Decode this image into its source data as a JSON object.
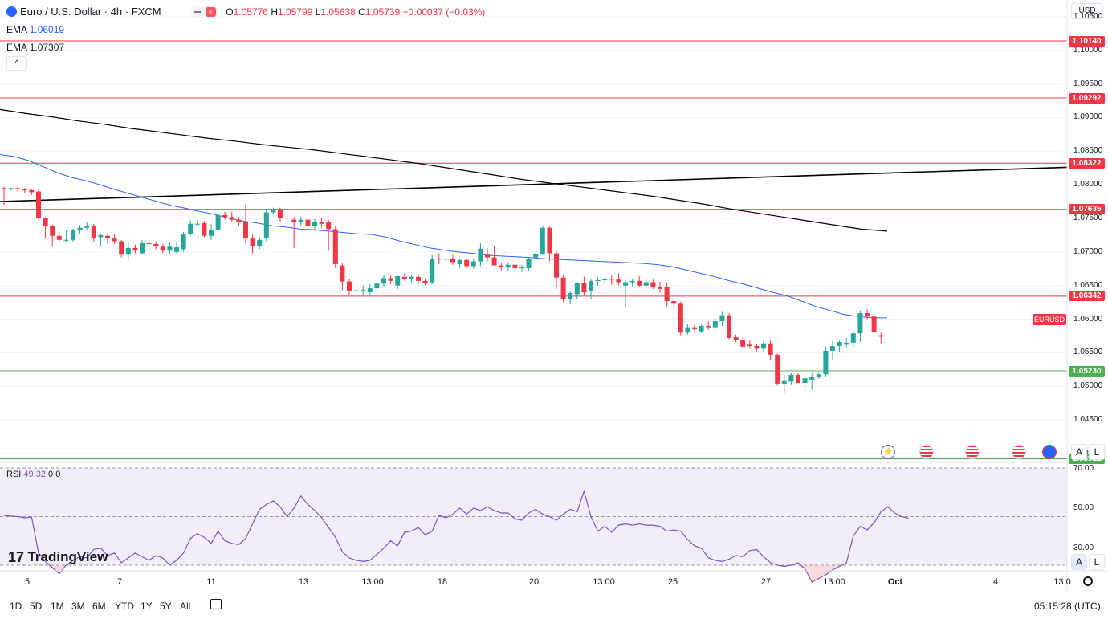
{
  "header": {
    "symbol_title": "Euro / U.S. Dollar · 4h · FXCM",
    "ohlc": {
      "open_label": "O",
      "open": "1.05776",
      "high_label": "H",
      "high": "1.05799",
      "low_label": "L",
      "low": "1.05638",
      "close_label": "C",
      "close": "1.05739",
      "change": "−0.00037 (−0.03%)"
    },
    "ema_fast_label": "EMA",
    "ema_fast_value": "1.06019",
    "ema_slow_label": "EMA",
    "ema_slow_value": "1.07307",
    "collapse_glyph": "^"
  },
  "currency_button": "USD",
  "symbol_tag": "EURUSD",
  "rsi": {
    "label": "RSI",
    "value": "49.32",
    "extra1": "0",
    "extra2": "0",
    "ticks": [
      "70.00",
      "50.00",
      "30.00"
    ]
  },
  "logo_text": "TradingView",
  "x_ticks": [
    "5",
    "7",
    "11",
    "13",
    "13:00",
    "18",
    "20",
    "13:00",
    "25",
    "27",
    "13:00",
    "Oct",
    "4",
    "13:0"
  ],
  "range_buttons": [
    "1D",
    "5D",
    "1M",
    "3M",
    "6M",
    "YTD",
    "1Y",
    "5Y",
    "All"
  ],
  "clock": "05:15:28 (UTC)",
  "scale_buttons": {
    "auto": "A",
    "log": "L"
  },
  "colors": {
    "up": "#26a69a",
    "down": "#f23645",
    "ema_fast": "#2962ff",
    "ema_slow": "#000000",
    "resistance": "#f23645",
    "support": "#4caf50",
    "rsi_line": "#7e57c2"
  },
  "chart_data": [
    {
      "type": "candlestick",
      "title": "Euro / U.S. Dollar · 4h · FXCM",
      "y_ticks": [
        1.105,
        1.1,
        1.095,
        1.09,
        1.085,
        1.08,
        1.075,
        1.07,
        1.065,
        1.06,
        1.055,
        1.05,
        1.045,
        1.04
      ],
      "y_tick_labels": [
        "1.10500",
        "1.10000",
        "1.09500",
        "1.09000",
        "1.08500",
        "1.08000",
        "1.07500",
        "1.07000",
        "1.06500",
        "1.06000",
        "1.05500",
        "1.05000",
        "1.04500",
        "1.04000"
      ],
      "ylim": [
        1.0388,
        1.1075
      ],
      "x_tick_labels": [
        "5",
        "7",
        "11",
        "13",
        "13:00",
        "18",
        "20",
        "13:00",
        "25",
        "27",
        "13:00",
        "Oct",
        "4",
        "13:0"
      ],
      "horizontal_levels": [
        {
          "value": 1.1014,
          "label": "1.10140",
          "kind": "resistance"
        },
        {
          "value": 1.09292,
          "label": "1.09292",
          "kind": "resistance"
        },
        {
          "value": 1.08322,
          "label": "1.08322",
          "kind": "resistance"
        },
        {
          "value": 1.07635,
          "label": "1.07635",
          "kind": "resistance"
        },
        {
          "value": 1.06342,
          "label": "1.06342",
          "kind": "resistance"
        },
        {
          "value": 1.0523,
          "label": "1.05230",
          "kind": "support"
        },
        {
          "value": 1.03922,
          "label": "1.03922",
          "kind": "support"
        }
      ],
      "trendline": {
        "start": 1.0775,
        "end": 1.0826
      },
      "ema_fast": [
        1.0845,
        1.0842,
        1.0836,
        1.0827,
        1.0818,
        1.0811,
        1.0806,
        1.08,
        1.0793,
        1.0787,
        1.0781,
        1.0775,
        1.0769,
        1.0765,
        1.076,
        1.0756,
        1.075,
        1.0746,
        1.0743,
        1.0739,
        1.0737,
        1.0734,
        1.0733,
        1.0731,
        1.0729,
        1.0727,
        1.0726,
        1.0722,
        1.0716,
        1.0711,
        1.0706,
        1.0703,
        1.07,
        1.0698,
        1.0695,
        1.0694,
        1.0693,
        1.0692,
        1.069,
        1.0689,
        1.0688,
        1.0687,
        1.0686,
        1.0685,
        1.0684,
        1.0683,
        1.0681,
        1.0678,
        1.0673,
        1.0668,
        1.0663,
        1.0657,
        1.0652,
        1.0646,
        1.064,
        1.0635,
        1.0627,
        1.0619,
        1.0613,
        1.0607,
        1.0604,
        1.0602,
        1.0602
      ],
      "ema_slow": [
        1.0912,
        1.0906,
        1.0901,
        1.0895,
        1.089,
        1.0884,
        1.0879,
        1.0874,
        1.0869,
        1.0865,
        1.086,
        1.0856,
        1.0852,
        1.0847,
        1.0842,
        1.0837,
        1.0832,
        1.0826,
        1.082,
        1.0814,
        1.0808,
        1.0803,
        1.0798,
        1.0793,
        1.0788,
        1.0783,
        1.0777,
        1.0771,
        1.0764,
        1.0758,
        1.0752,
        1.0746,
        1.074,
        1.0734,
        1.0731
      ],
      "candles": [
        [
          1.0795,
          1.0797,
          1.077,
          1.0793
        ],
        [
          1.0793,
          1.0796,
          1.0792,
          1.0795
        ],
        [
          1.0795,
          1.0796,
          1.0789,
          1.0793
        ],
        [
          1.0793,
          1.0795,
          1.0788,
          1.0792
        ],
        [
          1.0792,
          1.0794,
          1.0785,
          1.0789
        ],
        [
          1.079,
          1.0794,
          1.0748,
          1.075
        ],
        [
          1.075,
          1.0752,
          1.072,
          1.0738
        ],
        [
          1.0738,
          1.0741,
          1.0708,
          1.0724
        ],
        [
          1.0724,
          1.073,
          1.0715,
          1.0718
        ],
        [
          1.0718,
          1.0733,
          1.0714,
          1.0718
        ],
        [
          1.0718,
          1.0735,
          1.0715,
          1.0733
        ],
        [
          1.0732,
          1.074,
          1.0726,
          1.0736
        ],
        [
          1.0736,
          1.0744,
          1.0732,
          1.0738
        ],
        [
          1.0738,
          1.0742,
          1.0715,
          1.072
        ],
        [
          1.0722,
          1.0728,
          1.0708,
          1.0725
        ],
        [
          1.0724,
          1.0728,
          1.0712,
          1.072
        ],
        [
          1.072,
          1.0726,
          1.0712,
          1.0716
        ],
        [
          1.0716,
          1.0718,
          1.0692,
          1.0696
        ],
        [
          1.0696,
          1.0714,
          1.0688,
          1.0706
        ],
        [
          1.0706,
          1.0711,
          1.0698,
          1.0702
        ],
        [
          1.0698,
          1.0718,
          1.0696,
          1.0713
        ],
        [
          1.0713,
          1.0722,
          1.0704,
          1.0712
        ],
        [
          1.0712,
          1.0716,
          1.0704,
          1.0708
        ],
        [
          1.0708,
          1.0712,
          1.0698,
          1.0702
        ],
        [
          1.0702,
          1.0715,
          1.0697,
          1.0708
        ],
        [
          1.07,
          1.0715,
          1.0697,
          1.0707
        ],
        [
          1.0704,
          1.073,
          1.07,
          1.0727
        ],
        [
          1.0727,
          1.0747,
          1.0724,
          1.0742
        ],
        [
          1.0742,
          1.0748,
          1.0738,
          1.0742
        ],
        [
          1.0743,
          1.0746,
          1.0722,
          1.0724
        ],
        [
          1.0724,
          1.0742,
          1.0718,
          1.0733
        ],
        [
          1.0733,
          1.076,
          1.073,
          1.0755
        ],
        [
          1.0755,
          1.076,
          1.0748,
          1.0752
        ],
        [
          1.0752,
          1.076,
          1.0745,
          1.0748
        ],
        [
          1.0748,
          1.0752,
          1.0738,
          1.0745
        ],
        [
          1.0745,
          1.0772,
          1.0712,
          1.072
        ],
        [
          1.072,
          1.0726,
          1.0698,
          1.0708
        ],
        [
          1.0708,
          1.0722,
          1.0704,
          1.0718
        ],
        [
          1.072,
          1.0763,
          1.0716,
          1.0759
        ],
        [
          1.0759,
          1.0766,
          1.0756,
          1.0762
        ],
        [
          1.0762,
          1.0766,
          1.0745,
          1.0751
        ],
        [
          1.0751,
          1.0758,
          1.0738,
          1.075
        ],
        [
          1.0748,
          1.0752,
          1.0706,
          1.0745
        ],
        [
          1.0745,
          1.0753,
          1.0738,
          1.0748
        ],
        [
          1.0748,
          1.0752,
          1.0734,
          1.0739
        ],
        [
          1.0739,
          1.0749,
          1.0731,
          1.0745
        ],
        [
          1.0745,
          1.075,
          1.0736,
          1.0742
        ],
        [
          1.0745,
          1.0748,
          1.0702,
          1.0734
        ],
        [
          1.0734,
          1.0738,
          1.0676,
          1.0682
        ],
        [
          1.068,
          1.0684,
          1.0643,
          1.0656
        ],
        [
          1.0656,
          1.066,
          1.0636,
          1.0642
        ],
        [
          1.0642,
          1.0649,
          1.0636,
          1.0643
        ],
        [
          1.0643,
          1.065,
          1.0635,
          1.0644
        ],
        [
          1.064,
          1.0652,
          1.0634,
          1.0646
        ],
        [
          1.0646,
          1.0657,
          1.0643,
          1.0653
        ],
        [
          1.0653,
          1.0666,
          1.0648,
          1.0661
        ],
        [
          1.0661,
          1.0666,
          1.0652,
          1.0657
        ],
        [
          1.065,
          1.0665,
          1.0645,
          1.0664
        ],
        [
          1.0663,
          1.0668,
          1.0657,
          1.066
        ],
        [
          1.066,
          1.0666,
          1.0654,
          1.0663
        ],
        [
          1.0663,
          1.0667,
          1.0652,
          1.0657
        ],
        [
          1.0657,
          1.0661,
          1.065,
          1.0653
        ],
        [
          1.0655,
          1.0695,
          1.0652,
          1.069
        ],
        [
          1.069,
          1.0697,
          1.0682,
          1.0689
        ],
        [
          1.0689,
          1.0692,
          1.0685,
          1.069
        ],
        [
          1.069,
          1.0696,
          1.0681,
          1.0685
        ],
        [
          1.0682,
          1.069,
          1.0676,
          1.0688
        ],
        [
          1.0688,
          1.069,
          1.0676,
          1.0679
        ],
        [
          1.0679,
          1.0689,
          1.0675,
          1.0686
        ],
        [
          1.0686,
          1.0713,
          1.0679,
          1.0705
        ],
        [
          1.0696,
          1.0706,
          1.0686,
          1.0692
        ],
        [
          1.0692,
          1.071,
          1.0682,
          1.068
        ],
        [
          1.068,
          1.0685,
          1.0672,
          1.0677
        ],
        [
          1.0677,
          1.0685,
          1.0672,
          1.0681
        ],
        [
          1.0681,
          1.0684,
          1.067,
          1.0676
        ],
        [
          1.0676,
          1.0681,
          1.067,
          1.0678
        ],
        [
          1.0676,
          1.0692,
          1.0672,
          1.069
        ],
        [
          1.0692,
          1.0699,
          1.0694,
          1.0697
        ],
        [
          1.0697,
          1.0739,
          1.0695,
          1.0736
        ],
        [
          1.0736,
          1.0739,
          1.0686,
          1.0698
        ],
        [
          1.0698,
          1.0702,
          1.0645,
          1.0662
        ],
        [
          1.0662,
          1.0666,
          1.0625,
          1.063
        ],
        [
          1.063,
          1.0642,
          1.0622,
          1.0639
        ],
        [
          1.0637,
          1.0655,
          1.063,
          1.0654
        ],
        [
          1.0654,
          1.0663,
          1.0636,
          1.064
        ],
        [
          1.0642,
          1.0659,
          1.063,
          1.0657
        ],
        [
          1.0657,
          1.0663,
          1.065,
          1.0658
        ],
        [
          1.0658,
          1.0662,
          1.0652,
          1.066
        ],
        [
          1.066,
          1.0665,
          1.0651,
          1.0659
        ],
        [
          1.0659,
          1.0668,
          1.065,
          1.0655
        ],
        [
          1.065,
          1.0658,
          1.0618,
          1.0655
        ],
        [
          1.0655,
          1.066,
          1.0649,
          1.0657
        ],
        [
          1.0657,
          1.0664,
          1.0647,
          1.065
        ],
        [
          1.065,
          1.066,
          1.0646,
          1.0655
        ],
        [
          1.0655,
          1.0659,
          1.0645,
          1.0648
        ],
        [
          1.0648,
          1.0656,
          1.064,
          1.0645
        ],
        [
          1.0648,
          1.0653,
          1.0618,
          1.0627
        ],
        [
          1.0627,
          1.0628,
          1.0617,
          1.0623
        ],
        [
          1.0623,
          1.0626,
          1.0576,
          1.058
        ],
        [
          1.058,
          1.0593,
          1.0577,
          1.0588
        ],
        [
          1.0588,
          1.0592,
          1.058,
          1.0585
        ],
        [
          1.0582,
          1.0592,
          1.0579,
          1.059
        ],
        [
          1.059,
          1.0597,
          1.0584,
          1.0588
        ],
        [
          1.0588,
          1.0601,
          1.0584,
          1.0597
        ],
        [
          1.0597,
          1.0611,
          1.059,
          1.0606
        ],
        [
          1.0606,
          1.0609,
          1.057,
          1.0572
        ],
        [
          1.0573,
          1.0577,
          1.0566,
          1.0569
        ],
        [
          1.0569,
          1.0573,
          1.0556,
          1.0559
        ],
        [
          1.0562,
          1.0568,
          1.0556,
          1.056
        ],
        [
          1.056,
          1.0564,
          1.0551,
          1.0556
        ],
        [
          1.0556,
          1.057,
          1.0552,
          1.0564
        ],
        [
          1.0564,
          1.0568,
          1.054,
          1.0547
        ],
        [
          1.0547,
          1.0549,
          1.0501,
          1.0504
        ],
        [
          1.0504,
          1.0517,
          1.049,
          1.0509
        ],
        [
          1.0507,
          1.052,
          1.0503,
          1.0517
        ],
        [
          1.0517,
          1.052,
          1.0508,
          1.0505
        ],
        [
          1.0505,
          1.0516,
          1.0492,
          1.0512
        ],
        [
          1.051,
          1.052,
          1.0495,
          1.0514
        ],
        [
          1.0514,
          1.0521,
          1.0511,
          1.0518
        ],
        [
          1.0518,
          1.0559,
          1.0514,
          1.0553
        ],
        [
          1.0553,
          1.0567,
          1.054,
          1.056
        ],
        [
          1.056,
          1.0568,
          1.0551,
          1.0566
        ],
        [
          1.0562,
          1.0572,
          1.0558,
          1.0565
        ],
        [
          1.0565,
          1.0583,
          1.0558,
          1.0579
        ],
        [
          1.0579,
          1.0613,
          1.0566,
          1.0609
        ],
        [
          1.0609,
          1.0615,
          1.06,
          1.0604
        ],
        [
          1.0604,
          1.0607,
          1.0573,
          1.0581
        ],
        [
          1.0576,
          1.058,
          1.0564,
          1.0574
        ]
      ]
    },
    {
      "type": "line",
      "title": "RSI",
      "y_ticks": [
        70,
        50,
        30
      ],
      "ylim": [
        28,
        72
      ],
      "overbought": 70,
      "oversold": 30,
      "values": [
        50.5,
        50.2,
        50.0,
        49.5,
        49.8,
        35.0,
        31.5,
        29.0,
        26.5,
        30.0,
        32.0,
        33.5,
        33.0,
        36.5,
        37.0,
        34.0,
        35.0,
        31.0,
        33.0,
        35.0,
        33.5,
        32.0,
        34.0,
        33.0,
        30.0,
        32.0,
        35.0,
        41.0,
        43.0,
        41.5,
        39.0,
        44.0,
        40.0,
        39.0,
        38.5,
        41.0,
        47.0,
        53.0,
        55.0,
        56.5,
        54.0,
        50.0,
        53.5,
        58.5,
        55.0,
        52.5,
        49.5,
        45.5,
        41.5,
        35.5,
        33.0,
        32.0,
        31.5,
        32.0,
        34.5,
        37.0,
        40.0,
        38.0,
        43.5,
        44.0,
        45.5,
        42.5,
        44.0,
        50.5,
        49.5,
        51.0,
        53.5,
        51.0,
        53.5,
        52.5,
        54.0,
        52.5,
        51.5,
        51.5,
        49.0,
        48.5,
        51.5,
        53.0,
        51.0,
        50.0,
        48.5,
        51.0,
        53.0,
        52.0,
        60.5,
        50.0,
        44.0,
        46.0,
        43.5,
        46.5,
        47.0,
        46.5,
        47.0,
        46.5,
        46.5,
        46.0,
        44.0,
        44.5,
        44.0,
        40.5,
        38.0,
        37.0,
        33.0,
        32.0,
        31.5,
        32.5,
        34.0,
        33.5,
        36.0,
        36.5,
        33.5,
        31.0,
        30.0,
        29.5,
        30.0,
        31.0,
        28.5,
        23.0,
        24.5,
        26.0,
        28.0,
        29.5,
        31.0,
        42.0,
        46.0,
        44.5,
        47.5,
        52.0,
        54.0,
        51.5,
        50.0,
        49.3
      ]
    }
  ]
}
